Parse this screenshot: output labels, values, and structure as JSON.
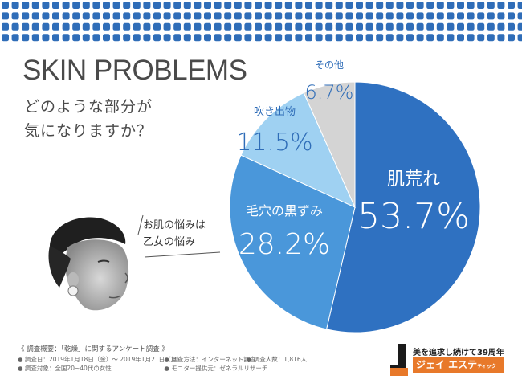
{
  "header": {
    "title": "SKIN PROBLEMS",
    "question_line1": "どのような部分が",
    "question_line2": "気になりますか？"
  },
  "callout": {
    "line1": "お肌の悩みは",
    "line2": "乙女の悩み"
  },
  "chart_data": {
    "type": "pie",
    "title": "",
    "slices": [
      {
        "label": "肌荒れ",
        "value": 53.7,
        "display": "53.7%",
        "color": "#2f71c1"
      },
      {
        "label": "毛穴の黒ずみ",
        "value": 28.2,
        "display": "28.2%",
        "color": "#4a97da"
      },
      {
        "label": "吹き出物",
        "value": 11.5,
        "display": "11.5%",
        "color": "#9fd1f2"
      },
      {
        "label": "その他",
        "value": 6.7,
        "display": "6.7%",
        "color": "#d4d4d4"
      }
    ],
    "start": "12 o'clock",
    "direction": "clockwise"
  },
  "colors": {
    "band_dot": "#2f6db8",
    "label_blue": "#2f6db8",
    "slice_text": "#ffffff"
  },
  "survey": {
    "heading": "《 調査概要：「乾燥」に関するアンケート調査 》",
    "period": "● 調査日：2019年1月18日（金）～ 2019年1月21日（月）",
    "method": "● 調査方法：インターネット調査",
    "count": "● 調査人数：1,816人",
    "target": "● 調査対象：全国20~40代の女性",
    "provider": "● モニター提供元：ゼネラルリサーチ"
  },
  "brand": {
    "tagline": "美を追求し続けて39周年",
    "name": "ジェイ エステ",
    "name_suffix": "ティック"
  }
}
